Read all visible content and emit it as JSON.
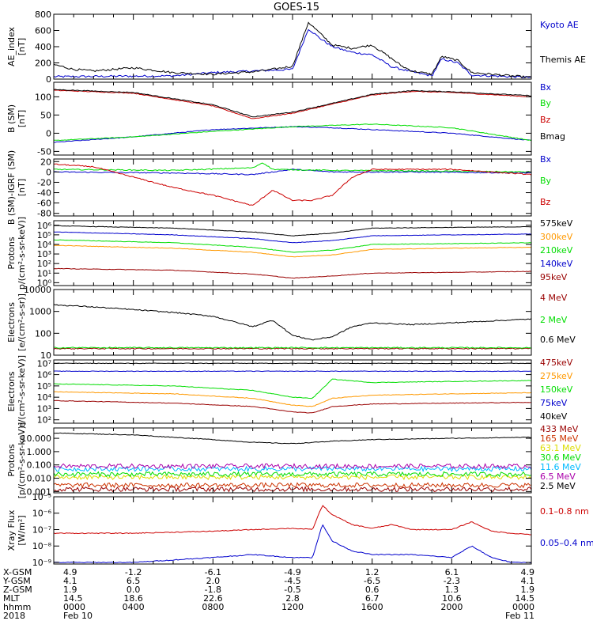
{
  "title": "GOES-15",
  "colors": {
    "black": "#000000",
    "blue": "#0000cc",
    "green": "#00dd00",
    "red": "#cc0000",
    "darkred": "#990000",
    "orange": "#ff9900",
    "yellow": "#dddd00",
    "cyan": "#00bbff",
    "lightblue": "#0066ff",
    "purple": "#aa00aa"
  },
  "chart_data": [
    {
      "type": "line",
      "id": "ae",
      "ylabel": [
        "AE_index",
        "[nT]"
      ],
      "ylim": [
        0,
        800
      ],
      "yticks": [
        0,
        200,
        400,
        600,
        800
      ],
      "ytick_labels": [
        "0",
        "200",
        "400",
        "600",
        "800"
      ],
      "series": [
        {
          "name": "Kyoto AE",
          "color": "#0000cc",
          "x": [
            0,
            6,
            8,
            10,
            12,
            12.8,
            13.4,
            14,
            15,
            16,
            17,
            18,
            19,
            19.5,
            20.3,
            21,
            22,
            23,
            24
          ],
          "y": [
            30,
            40,
            80,
            100,
            120,
            620,
            500,
            400,
            330,
            300,
            150,
            90,
            40,
            250,
            200,
            50,
            40,
            30,
            20
          ]
        },
        {
          "name": "Themis AE",
          "color": "#000000",
          "x": [
            0,
            1,
            2,
            4,
            6,
            8,
            10,
            11,
            12,
            12.8,
            13.4,
            14,
            15,
            16,
            17,
            17.5,
            18,
            19,
            19.5,
            20.3,
            21,
            22,
            23,
            24
          ],
          "y": [
            180,
            120,
            100,
            140,
            80,
            60,
            90,
            120,
            160,
            700,
            560,
            420,
            380,
            420,
            250,
            160,
            100,
            60,
            280,
            230,
            80,
            60,
            40,
            20
          ]
        }
      ]
    },
    {
      "type": "line",
      "id": "bsm",
      "ylabel": [
        "B (SM)",
        "[nT]"
      ],
      "ylim": [
        -60,
        140
      ],
      "yticks": [
        -50,
        0,
        50,
        100
      ],
      "ytick_labels": [
        "-50",
        "0",
        "50",
        "100"
      ],
      "series": [
        {
          "name": "Bx",
          "color": "#0000cc",
          "x": [
            0,
            4,
            8,
            12,
            14,
            16,
            20,
            24
          ],
          "y": [
            -25,
            -10,
            10,
            18,
            15,
            10,
            0,
            -20
          ]
        },
        {
          "name": "By",
          "color": "#00dd00",
          "x": [
            0,
            4,
            8,
            12,
            16,
            20,
            24
          ],
          "y": [
            -20,
            -10,
            5,
            18,
            25,
            15,
            -20
          ]
        },
        {
          "name": "Bz",
          "color": "#cc0000",
          "x": [
            0,
            4,
            8,
            10,
            12,
            14,
            16,
            18,
            20,
            24
          ],
          "y": [
            118,
            110,
            75,
            40,
            55,
            80,
            105,
            115,
            112,
            100
          ]
        },
        {
          "name": "Bmag",
          "color": "#000000",
          "x": [
            0,
            4,
            8,
            10,
            12,
            14,
            16,
            18,
            20,
            24
          ],
          "y": [
            120,
            112,
            78,
            45,
            58,
            82,
            107,
            117,
            114,
            103
          ]
        }
      ]
    },
    {
      "type": "line",
      "id": "digrf",
      "ylabel": [
        "B (SM)-IGRF (SM)",
        "[nT]"
      ],
      "ylim": [
        -85,
        25
      ],
      "yticks": [
        -80,
        -60,
        -40,
        -20,
        0,
        20
      ],
      "ytick_labels": [
        "-80",
        "-60",
        "-40",
        "-20",
        "0",
        "20"
      ],
      "series": [
        {
          "name": "Bx",
          "color": "#0000cc",
          "x": [
            0,
            6,
            10,
            12,
            14,
            18,
            24
          ],
          "y": [
            0,
            -2,
            -5,
            5,
            0,
            0,
            -2
          ]
        },
        {
          "name": "By",
          "color": "#00dd00",
          "x": [
            0,
            6,
            10,
            10.5,
            11,
            14,
            18,
            24
          ],
          "y": [
            5,
            3,
            8,
            18,
            5,
            3,
            2,
            0
          ]
        },
        {
          "name": "Bz",
          "color": "#cc0000",
          "x": [
            0,
            2,
            4,
            6,
            8,
            10,
            11,
            12,
            13,
            14,
            15,
            16,
            18,
            20,
            22,
            24
          ],
          "y": [
            15,
            10,
            -10,
            -30,
            -45,
            -65,
            -35,
            -55,
            -55,
            -45,
            -10,
            5,
            5,
            5,
            0,
            -5
          ]
        }
      ]
    },
    {
      "type": "line",
      "id": "protons1",
      "yscale": "log",
      "ylabel": [
        "Protons",
        "p/(cm²-s-sr-keV)]"
      ],
      "ylim": [
        0.5,
        3000000
      ],
      "yticks": [
        1,
        10,
        100,
        1000,
        10000,
        100000,
        1000000
      ],
      "ytick_labels": [
        "10⁰",
        "10¹",
        "10²",
        "10³",
        "10⁴",
        "10⁵",
        "10⁶"
      ],
      "series": [
        {
          "name": "575keV",
          "color": "#000000",
          "x": [
            0,
            6,
            10,
            12,
            14,
            16,
            20,
            24
          ],
          "y": [
            900000,
            500000,
            200000,
            80000,
            150000,
            500000,
            600000,
            700000
          ]
        },
        {
          "name": "300keV",
          "color": "#ff9900",
          "x": [
            0,
            6,
            10,
            12,
            14,
            16,
            20,
            24
          ],
          "y": [
            8000,
            4000,
            1500,
            500,
            800,
            3000,
            4000,
            5000
          ]
        },
        {
          "name": "210keV",
          "color": "#00dd00",
          "x": [
            0,
            6,
            10,
            12,
            14,
            16,
            20,
            24
          ],
          "y": [
            30000,
            15000,
            5000,
            1500,
            2500,
            10000,
            12000,
            15000
          ]
        },
        {
          "name": "140keV",
          "color": "#0000cc",
          "x": [
            0,
            6,
            10,
            12,
            14,
            16,
            20,
            24
          ],
          "y": [
            200000,
            100000,
            40000,
            15000,
            25000,
            80000,
            100000,
            120000
          ]
        },
        {
          "name": "95keV",
          "color": "#990000",
          "x": [
            0,
            6,
            10,
            12,
            14,
            16,
            20,
            24
          ],
          "y": [
            30,
            20,
            8,
            3,
            5,
            10,
            12,
            15
          ]
        }
      ]
    },
    {
      "type": "line",
      "id": "electrons1",
      "yscale": "log",
      "ylabel": [
        "Electrons",
        "[e/(cm²-s-sr)]"
      ],
      "ylim": [
        10,
        10000
      ],
      "yticks": [
        10,
        100,
        1000,
        10000
      ],
      "ytick_labels": [
        "10",
        "100",
        "1000",
        "10000"
      ],
      "series": [
        {
          "name": "4 MeV",
          "color": "#990000",
          "x": [
            0,
            24
          ],
          "y": [
            20,
            20
          ]
        },
        {
          "name": "2 MeV",
          "color": "#00dd00",
          "x": [
            0,
            24
          ],
          "y": [
            22,
            22
          ]
        },
        {
          "name": "0.6 MeV",
          "color": "#000000",
          "x": [
            0,
            2,
            4,
            6,
            8,
            10,
            11,
            12,
            13,
            14,
            15,
            16,
            18,
            20,
            24
          ],
          "y": [
            2000,
            1600,
            1200,
            900,
            600,
            200,
            400,
            80,
            50,
            70,
            200,
            300,
            250,
            300,
            450
          ]
        }
      ]
    },
    {
      "type": "line",
      "id": "electrons2",
      "yscale": "log",
      "ylabel": [
        "Electrons",
        "e/(cm²-s-sr-keV)]"
      ],
      "ylim": [
        50,
        20000000
      ],
      "yticks": [
        100,
        1000,
        10000,
        100000,
        1000000,
        10000000
      ],
      "ytick_labels": [
        "10²",
        "10³",
        "10⁴",
        "10⁵",
        "10⁶",
        "10⁷"
      ],
      "series": [
        {
          "name": "475keV",
          "color": "#990000",
          "x": [
            0,
            6,
            10,
            12,
            13,
            14,
            16,
            20,
            24
          ],
          "y": [
            5000,
            3000,
            1500,
            500,
            400,
            1500,
            2500,
            3000,
            3500
          ]
        },
        {
          "name": "275keV",
          "color": "#ff9900",
          "x": [
            0,
            6,
            10,
            12,
            13,
            14,
            16,
            20,
            24
          ],
          "y": [
            30000,
            20000,
            8000,
            2000,
            1500,
            8000,
            15000,
            20000,
            25000
          ]
        },
        {
          "name": "150keV",
          "color": "#00dd00",
          "x": [
            0,
            6,
            10,
            12,
            13,
            14,
            16,
            20,
            24
          ],
          "y": [
            150000,
            100000,
            40000,
            10000,
            8000,
            400000,
            200000,
            250000,
            300000
          ]
        },
        {
          "name": "75keV",
          "color": "#0000cc",
          "x": [
            0,
            24
          ],
          "y": [
            2000000,
            2000000
          ]
        },
        {
          "name": "40keV",
          "color": "#000000",
          "x": [
            0,
            24
          ],
          "y": [
            10000000,
            10000000
          ]
        }
      ]
    },
    {
      "type": "line",
      "id": "protons2",
      "yscale": "log",
      "ylabel": [
        "Protons",
        "[p/(cm²-s-sr-keV)]"
      ],
      "ylim": [
        0.0008,
        60
      ],
      "yticks": [
        0.001,
        0.01,
        0.1,
        1,
        10
      ],
      "ytick_labels": [
        "0.001",
        "0.010",
        "0.100",
        "1.000",
        "10.000"
      ],
      "series": [
        {
          "name": "433 MeV",
          "color": "#990000",
          "x": [
            0,
            24
          ],
          "y": [
            0.0015,
            0.0015
          ]
        },
        {
          "name": "165 MeV",
          "color": "#cc3300",
          "x": [
            0,
            24
          ],
          "y": [
            0.003,
            0.003
          ]
        },
        {
          "name": "63.1 MeV",
          "color": "#dddd00",
          "x": [
            0,
            24
          ],
          "y": [
            0.012,
            0.012
          ]
        },
        {
          "name": "30.6 MeV",
          "color": "#00dd00",
          "x": [
            0,
            24
          ],
          "y": [
            0.02,
            0.02
          ]
        },
        {
          "name": "11.6 MeV",
          "color": "#00bbff",
          "x": [
            0,
            24
          ],
          "y": [
            0.05,
            0.05
          ]
        },
        {
          "name": "6.5 MeV",
          "color": "#aa00aa",
          "x": [
            0,
            24
          ],
          "y": [
            0.08,
            0.08
          ]
        },
        {
          "name": "2.5 MeV",
          "color": "#000000",
          "x": [
            0,
            4,
            8,
            10,
            12,
            14,
            16,
            20,
            24
          ],
          "y": [
            25,
            18,
            8,
            5,
            4,
            6,
            8,
            10,
            12
          ]
        }
      ]
    },
    {
      "type": "line",
      "id": "xray",
      "yscale": "log",
      "ylabel": [
        "Xray Flux",
        "[W/m²]"
      ],
      "ylim": [
        8e-10,
        1e-05
      ],
      "yticks": [
        1e-09,
        1e-08,
        1e-07,
        1e-06,
        1e-05
      ],
      "ytick_labels": [
        "10⁻⁹",
        "10⁻⁸",
        "10⁻⁷",
        "10⁻⁶",
        "10⁻⁵"
      ],
      "series": [
        {
          "name": "0.1–0.8 nm",
          "color": "#cc0000",
          "x": [
            0,
            4,
            8,
            10,
            12,
            13,
            13.5,
            14,
            15,
            16,
            17,
            18,
            19,
            20,
            21,
            22,
            23,
            24
          ],
          "y": [
            6e-08,
            6e-08,
            8e-08,
            1e-07,
            1.2e-07,
            1e-07,
            3e-06,
            8e-07,
            2e-07,
            1.2e-07,
            2e-07,
            1e-07,
            1e-07,
            1e-07,
            3e-07,
            8e-08,
            6e-08,
            5e-08
          ]
        },
        {
          "name": "0.05–0.4 nm",
          "color": "#0000cc",
          "x": [
            0,
            4,
            8,
            10,
            12,
            13,
            13.5,
            14,
            15,
            16,
            18,
            20,
            21,
            22,
            23,
            24
          ],
          "y": [
            1e-09,
            1e-09,
            2e-09,
            3e-09,
            2e-09,
            2e-09,
            2e-07,
            2e-08,
            5e-09,
            3e-09,
            3e-09,
            2e-09,
            1e-08,
            2e-09,
            1e-09,
            1e-09
          ]
        }
      ]
    }
  ],
  "legend_labels": [
    [
      "Kyoto AE",
      "Themis AE"
    ],
    [
      "Bx",
      "By",
      "Bz",
      "Bmag"
    ],
    [
      "Bx",
      "By",
      "Bz"
    ],
    [
      "575keV",
      "300keV",
      "210keV",
      "140keV",
      "95keV"
    ],
    [
      "4 MeV",
      "2 MeV",
      "0.6 MeV"
    ],
    [
      "475keV",
      "275keV",
      "150keV",
      "75keV",
      "40keV"
    ],
    [
      "433 MeV",
      "165 MeV",
      "63.1 MeV",
      "30.6 MeV",
      "11.6 MeV",
      "6.5 MeV",
      "2.5 MeV"
    ],
    [
      "0.1–0.8 nm",
      "0.05–0.4 nm"
    ]
  ],
  "orbit": {
    "rows": [
      {
        "label": "X-GSM",
        "values": [
          "4.9",
          "-1.2",
          "-6.1",
          "-4.9",
          "1.2",
          "6.1",
          "4.9"
        ]
      },
      {
        "label": "Y-GSM",
        "values": [
          "4.1",
          "6.5",
          "2.0",
          "-4.5",
          "-6.5",
          "-2.3",
          "4.1"
        ]
      },
      {
        "label": "Z-GSM",
        "values": [
          "1.9",
          "0.0",
          "-1.8",
          "-0.5",
          "0.6",
          "1.3",
          "1.9"
        ]
      },
      {
        "label": "MLT",
        "values": [
          "14.5",
          "18.6",
          "22.6",
          "2.8",
          "6.7",
          "10.6",
          "14.5"
        ]
      },
      {
        "label": "hhmm",
        "values": [
          "0000",
          "0400",
          "0800",
          "1200",
          "1600",
          "2000",
          "0000"
        ]
      },
      {
        "label": "2018",
        "values": [
          "Feb 10",
          "",
          "",
          "",
          "",
          "",
          "Feb 11"
        ]
      }
    ]
  }
}
